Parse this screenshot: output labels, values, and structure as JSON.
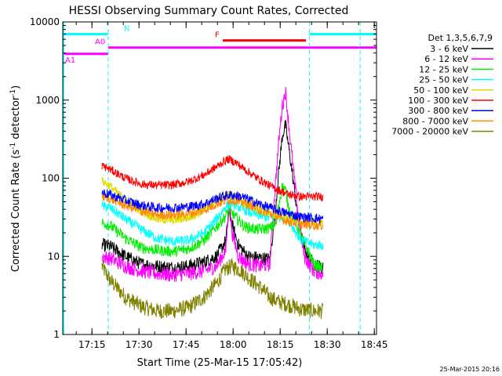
{
  "chart_data": {
    "type": "line",
    "title": "HESSI Observing Summary Count Rates, Corrected",
    "xlabel": "Start Time (25-Mar-15 17:05:42)",
    "ylabel": "Corrected Count Rate (s",
    "ylabel_sup1": "-1",
    "ylabel_mid": " detector",
    "ylabel_sup2": "-1",
    "ylabel_end": ")",
    "y_scale": "log",
    "ylim": [
      1,
      10000
    ],
    "xlim_minutes_after_start": [
      0,
      100
    ],
    "x_ticks": [
      {
        "label": "17:15",
        "min": 9.3
      },
      {
        "label": "17:30",
        "min": 24.3
      },
      {
        "label": "17:45",
        "min": 39.3
      },
      {
        "label": "18:00",
        "min": 54.3
      },
      {
        "label": "18:15",
        "min": 69.3
      },
      {
        "label": "18:30",
        "min": 84.3
      },
      {
        "label": "18:45",
        "min": 99.3
      }
    ],
    "y_ticks": [
      {
        "label": "1",
        "v": 1
      },
      {
        "label": "10",
        "v": 10
      },
      {
        "label": "100",
        "v": 100
      },
      {
        "label": "1000",
        "v": 1000
      },
      {
        "label": "10000",
        "v": 10000
      }
    ],
    "legend_title": "Det 1,3,5,6,7,9",
    "timestamp": "25-Mar-2015 20:16",
    "series": [
      {
        "name": "3 - 6 keV",
        "color": "#000000",
        "points": [
          [
            12.5,
            14
          ],
          [
            15,
            13.5
          ],
          [
            20,
            10
          ],
          [
            25,
            8
          ],
          [
            30,
            7.5
          ],
          [
            35,
            7.2
          ],
          [
            40,
            7.5
          ],
          [
            45,
            8.5
          ],
          [
            49,
            10
          ],
          [
            52,
            16
          ],
          [
            53,
            40
          ],
          [
            54,
            25
          ],
          [
            56,
            14
          ],
          [
            59,
            10
          ],
          [
            63,
            9.5
          ],
          [
            66,
            9.2
          ],
          [
            67.5,
            30
          ],
          [
            69,
            140
          ],
          [
            70,
            350
          ],
          [
            71,
            480
          ],
          [
            72,
            250
          ],
          [
            73,
            130
          ],
          [
            75,
            30
          ],
          [
            77,
            12
          ],
          [
            80,
            8
          ],
          [
            83,
            7
          ]
        ]
      },
      {
        "name": "6 - 12 keV",
        "color": "#ff00ff",
        "points": [
          [
            12.5,
            10
          ],
          [
            15,
            9.5
          ],
          [
            20,
            7.5
          ],
          [
            25,
            6.5
          ],
          [
            30,
            6
          ],
          [
            35,
            5.8
          ],
          [
            40,
            6
          ],
          [
            45,
            6.5
          ],
          [
            49,
            7.5
          ],
          [
            52,
            12
          ],
          [
            53,
            55
          ],
          [
            54,
            20
          ],
          [
            56,
            10
          ],
          [
            59,
            8
          ],
          [
            63,
            7.5
          ],
          [
            66,
            8
          ],
          [
            67.5,
            60
          ],
          [
            69,
            350
          ],
          [
            70,
            850
          ],
          [
            71,
            1300
          ],
          [
            72,
            500
          ],
          [
            73,
            200
          ],
          [
            75,
            35
          ],
          [
            77,
            10
          ],
          [
            80,
            6.5
          ],
          [
            83,
            6
          ]
        ]
      },
      {
        "name": "12 - 25 keV",
        "color": "#00ee00",
        "points": [
          [
            12.5,
            27
          ],
          [
            15,
            25
          ],
          [
            20,
            17
          ],
          [
            25,
            13
          ],
          [
            30,
            12
          ],
          [
            35,
            11.5
          ],
          [
            40,
            12.5
          ],
          [
            45,
            16
          ],
          [
            49,
            24
          ],
          [
            52,
            33
          ],
          [
            53,
            40
          ],
          [
            55,
            32
          ],
          [
            58,
            24
          ],
          [
            62,
            22
          ],
          [
            66,
            23
          ],
          [
            68,
            26
          ],
          [
            69,
            50
          ],
          [
            70,
            80
          ],
          [
            71,
            70
          ],
          [
            72,
            42
          ],
          [
            74,
            28
          ],
          [
            77,
            15
          ],
          [
            80,
            8
          ],
          [
            83,
            7
          ]
        ]
      },
      {
        "name": "25 - 50 keV",
        "color": "#00ffff",
        "points": [
          [
            12.5,
            44
          ],
          [
            15,
            42
          ],
          [
            20,
            30
          ],
          [
            25,
            22
          ],
          [
            30,
            17
          ],
          [
            35,
            15.5
          ],
          [
            40,
            16
          ],
          [
            45,
            20
          ],
          [
            49,
            30
          ],
          [
            52,
            44
          ],
          [
            54,
            48
          ],
          [
            57,
            41
          ],
          [
            60,
            36
          ],
          [
            63,
            33
          ],
          [
            66,
            31
          ],
          [
            69,
            32
          ],
          [
            71,
            33
          ],
          [
            73,
            25
          ],
          [
            76,
            16
          ],
          [
            80,
            14
          ],
          [
            83,
            14
          ]
        ]
      },
      {
        "name": "50 - 100 keV",
        "color": "#dddd00",
        "points": [
          [
            12.5,
            92
          ],
          [
            15,
            80
          ],
          [
            20,
            52
          ],
          [
            25,
            38
          ],
          [
            30,
            30
          ],
          [
            35,
            29
          ],
          [
            40,
            31
          ],
          [
            45,
            39
          ],
          [
            49,
            52
          ],
          [
            52,
            62
          ],
          [
            54,
            60
          ],
          [
            57,
            49
          ],
          [
            60,
            44
          ],
          [
            63,
            39
          ],
          [
            66,
            35
          ],
          [
            69,
            33
          ],
          [
            72,
            32
          ],
          [
            76,
            28
          ],
          [
            80,
            28
          ],
          [
            83,
            28
          ]
        ]
      },
      {
        "name": "100 - 300 keV",
        "color": "#ff0000",
        "points": [
          [
            12.5,
            145
          ],
          [
            15,
            130
          ],
          [
            20,
            100
          ],
          [
            25,
            84
          ],
          [
            30,
            81
          ],
          [
            35,
            82
          ],
          [
            40,
            90
          ],
          [
            45,
            110
          ],
          [
            49,
            140
          ],
          [
            52,
            170
          ],
          [
            53,
            175
          ],
          [
            55,
            160
          ],
          [
            58,
            130
          ],
          [
            62,
            100
          ],
          [
            66,
            80
          ],
          [
            69,
            70
          ],
          [
            72,
            62
          ],
          [
            76,
            58
          ],
          [
            80,
            58
          ],
          [
            83,
            58
          ]
        ]
      },
      {
        "name": "300 - 800 keV",
        "color": "#0000ff",
        "points": [
          [
            12.5,
            66
          ],
          [
            15,
            62
          ],
          [
            20,
            52
          ],
          [
            25,
            45
          ],
          [
            30,
            42
          ],
          [
            35,
            42
          ],
          [
            40,
            43
          ],
          [
            45,
            47
          ],
          [
            49,
            55
          ],
          [
            52,
            60
          ],
          [
            54,
            61
          ],
          [
            57,
            58
          ],
          [
            60,
            52
          ],
          [
            63,
            46
          ],
          [
            66,
            42
          ],
          [
            69,
            38
          ],
          [
            72,
            35
          ],
          [
            76,
            32
          ],
          [
            80,
            31
          ],
          [
            83,
            30
          ]
        ]
      },
      {
        "name": "800 - 7000 keV",
        "color": "#ff8800",
        "points": [
          [
            12.5,
            58
          ],
          [
            15,
            55
          ],
          [
            20,
            45
          ],
          [
            25,
            38
          ],
          [
            30,
            34
          ],
          [
            35,
            34
          ],
          [
            40,
            35
          ],
          [
            45,
            39
          ],
          [
            49,
            47
          ],
          [
            52,
            52
          ],
          [
            54,
            53
          ],
          [
            57,
            50
          ],
          [
            60,
            45
          ],
          [
            63,
            39
          ],
          [
            66,
            35
          ],
          [
            69,
            31
          ],
          [
            72,
            28
          ],
          [
            76,
            26
          ],
          [
            80,
            25
          ],
          [
            83,
            25
          ]
        ]
      },
      {
        "name": "7000 - 20000 keV",
        "color": "#808000",
        "points": [
          [
            12.5,
            7.5
          ],
          [
            15,
            5
          ],
          [
            20,
            3
          ],
          [
            25,
            2.3
          ],
          [
            30,
            2
          ],
          [
            35,
            2
          ],
          [
            40,
            2.2
          ],
          [
            45,
            3
          ],
          [
            49,
            4.5
          ],
          [
            52,
            7
          ],
          [
            54,
            7.5
          ],
          [
            57,
            6.5
          ],
          [
            60,
            5
          ],
          [
            63,
            4
          ],
          [
            66,
            3
          ],
          [
            69,
            2.6
          ],
          [
            72,
            2.4
          ],
          [
            76,
            2.1
          ],
          [
            80,
            2
          ],
          [
            83,
            2
          ]
        ]
      }
    ],
    "bars": [
      {
        "name": "N",
        "label": "N",
        "color": "#00ffff",
        "y": 7000,
        "x0": 0,
        "x1": 14.5
      },
      {
        "name": "N",
        "label": "",
        "color": "#00ffff",
        "y": 7000,
        "x0": 78.6,
        "x1": 100
      },
      {
        "name": "F",
        "label": "F",
        "color": "#ff0000",
        "y": 5800,
        "x0": 51,
        "x1": 77.5
      },
      {
        "name": "A0",
        "label": "A0",
        "color": "#ff00ff",
        "y": 4700,
        "x0": 14.5,
        "x1": 100
      },
      {
        "name": "A1",
        "label": "A1",
        "color": "#ff00ff",
        "y": 3900,
        "x0": 0,
        "x1": 14.5
      }
    ],
    "vlines": [
      {
        "color": "#00ffff",
        "min": 14.5
      },
      {
        "color": "#00ffff",
        "min": 78.6
      },
      {
        "color": "#00ffff",
        "min": 94.8
      }
    ],
    "grid": false,
    "legend_position": "right"
  }
}
